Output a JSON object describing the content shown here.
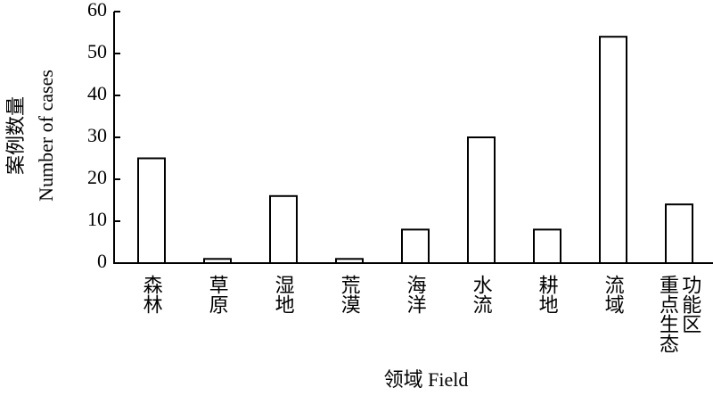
{
  "chart_data": {
    "type": "bar",
    "ylabel": [
      "案例数量",
      "Number of cases"
    ],
    "xlabel": "领域 Field",
    "categories": [
      "森林",
      "草原",
      "湿地",
      "荒漠",
      "海洋",
      "水流",
      "耕地",
      "流域",
      "重点生态功能区"
    ],
    "values": [
      25,
      1,
      16,
      1,
      8,
      30,
      8,
      54,
      14
    ],
    "color": "#ffffff",
    "edgecolor": "#000000",
    "ylim": [
      0,
      60
    ],
    "yticks": [
      0,
      10,
      20,
      30,
      40,
      50,
      60
    ],
    "grid": false
  }
}
